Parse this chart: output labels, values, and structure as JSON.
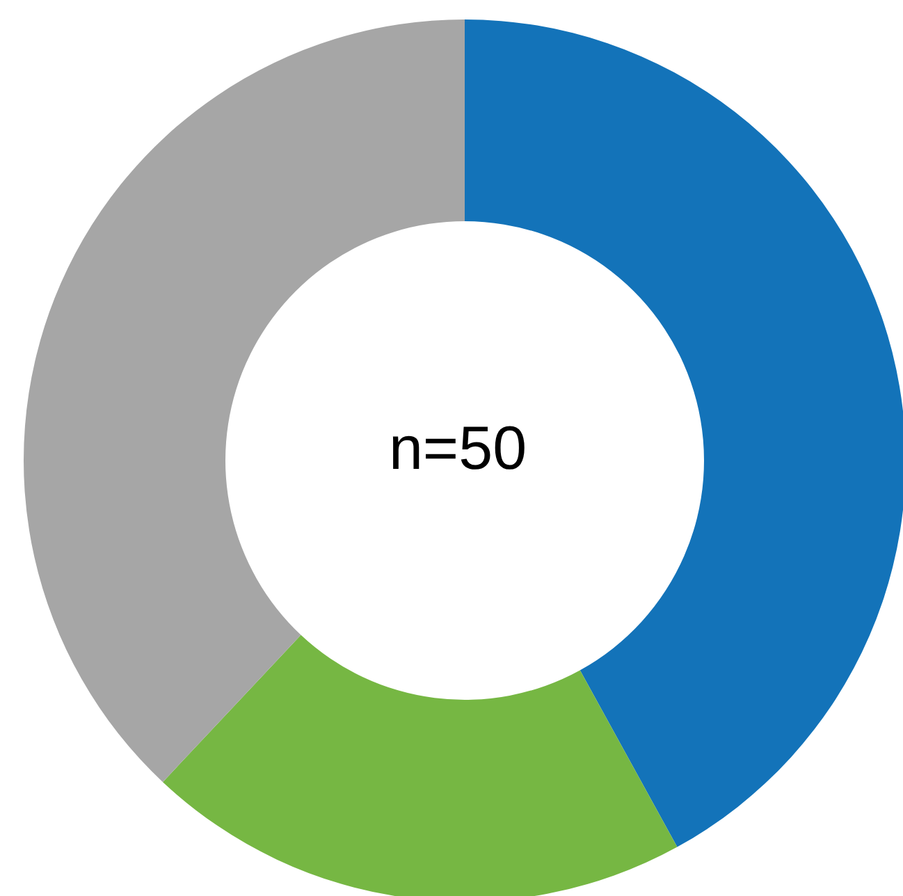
{
  "chart_data": {
    "type": "donut",
    "categories": [
      null,
      null,
      null
    ],
    "values": [
      42,
      20,
      38
    ],
    "colors": [
      "#1373b9",
      "#76b743",
      "#a6a6a6"
    ],
    "annotations": [
      "n=50"
    ],
    "legend": false
  }
}
